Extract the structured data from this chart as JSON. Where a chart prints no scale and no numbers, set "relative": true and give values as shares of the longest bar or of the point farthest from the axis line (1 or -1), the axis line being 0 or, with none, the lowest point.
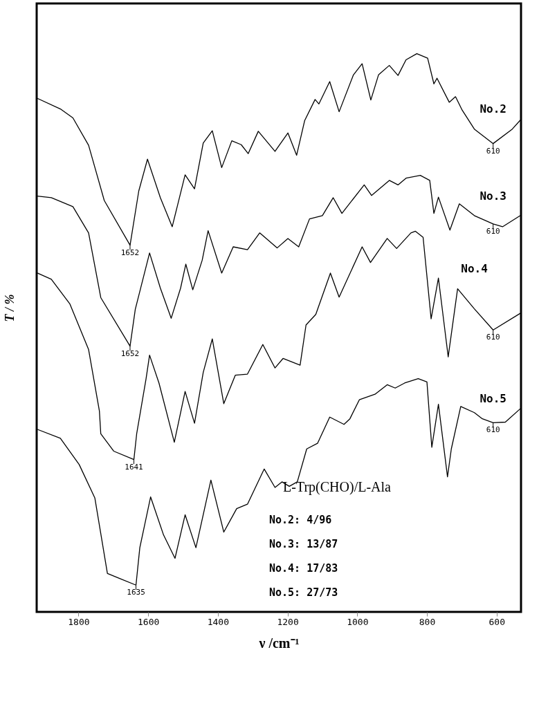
{
  "chart_data": {
    "type": "line",
    "relative": true,
    "xlabel": "ν /cm⁻¹",
    "ylabel": "T / %",
    "xlim": [
      1920,
      530
    ],
    "xticks": [
      1800,
      1600,
      1400,
      1200,
      1000,
      800,
      600
    ],
    "tick_labels": "x",
    "grid": false,
    "marker": "none",
    "line_style": "solid",
    "series": [
      {
        "name": "No.2",
        "color": "#000000",
        "x": [
          1918,
          1852,
          1816,
          1771,
          1726,
          1652,
          1627,
          1602,
          1565,
          1531,
          1494,
          1467,
          1442,
          1416,
          1389,
          1360,
          1333,
          1313,
          1284,
          1236,
          1199,
          1174,
          1151,
          1121,
          1110,
          1079,
          1052,
          1011,
          986,
          961,
          939,
          908,
          883,
          860,
          829,
          798,
          780,
          771,
          736,
          718,
          699,
          664,
          610,
          555,
          532
        ],
        "values": [
          0.92,
          0.901,
          0.885,
          0.836,
          0.737,
          0.657,
          0.754,
          0.811,
          0.742,
          0.69,
          0.783,
          0.758,
          0.84,
          0.862,
          0.796,
          0.844,
          0.837,
          0.821,
          0.861,
          0.825,
          0.858,
          0.818,
          0.88,
          0.918,
          0.91,
          0.95,
          0.896,
          0.962,
          0.982,
          0.917,
          0.962,
          0.979,
          0.961,
          0.989,
          1.0,
          0.992,
          0.946,
          0.956,
          0.913,
          0.923,
          0.899,
          0.865,
          0.839,
          0.865,
          0.881
        ]
      },
      {
        "name": "No.3",
        "color": "#000000",
        "x": [
          1918,
          1878,
          1816,
          1771,
          1736,
          1652,
          1637,
          1596,
          1565,
          1534,
          1507,
          1492,
          1472,
          1445,
          1428,
          1389,
          1356,
          1315,
          1280,
          1230,
          1199,
          1168,
          1137,
          1100,
          1069,
          1044,
          980,
          959,
          908,
          883,
          860,
          819,
          792,
          780,
          767,
          734,
          707,
          664,
          610,
          583,
          532
        ],
        "values": [
          0.745,
          0.742,
          0.726,
          0.679,
          0.563,
          0.476,
          0.542,
          0.643,
          0.58,
          0.526,
          0.58,
          0.623,
          0.577,
          0.63,
          0.683,
          0.607,
          0.654,
          0.649,
          0.679,
          0.652,
          0.669,
          0.654,
          0.704,
          0.71,
          0.742,
          0.714,
          0.765,
          0.746,
          0.773,
          0.765,
          0.777,
          0.782,
          0.773,
          0.714,
          0.743,
          0.684,
          0.731,
          0.71,
          0.695,
          0.69,
          0.71
        ]
      },
      {
        "name": "No.4",
        "color": "#000000",
        "x": [
          1918,
          1878,
          1825,
          1771,
          1740,
          1736,
          1699,
          1641,
          1633,
          1606,
          1596,
          1569,
          1525,
          1494,
          1467,
          1442,
          1416,
          1383,
          1350,
          1315,
          1271,
          1236,
          1213,
          1164,
          1147,
          1119,
          1077,
          1052,
          986,
          962,
          914,
          887,
          846,
          833,
          811,
          788,
          767,
          739,
          712,
          664,
          610,
          532
        ],
        "values": [
          0.607,
          0.596,
          0.552,
          0.47,
          0.36,
          0.319,
          0.288,
          0.273,
          0.319,
          0.418,
          0.46,
          0.41,
          0.304,
          0.395,
          0.338,
          0.429,
          0.489,
          0.373,
          0.424,
          0.426,
          0.479,
          0.437,
          0.454,
          0.442,
          0.514,
          0.533,
          0.607,
          0.564,
          0.654,
          0.626,
          0.669,
          0.651,
          0.679,
          0.682,
          0.671,
          0.525,
          0.598,
          0.457,
          0.579,
          0.543,
          0.505,
          0.535
        ]
      },
      {
        "name": "No.5",
        "color": "#000000",
        "x": [
          1918,
          1852,
          1798,
          1753,
          1717,
          1682,
          1635,
          1624,
          1593,
          1556,
          1523,
          1494,
          1463,
          1420,
          1383,
          1346,
          1315,
          1267,
          1236,
          1216,
          1195,
          1172,
          1145,
          1114,
          1079,
          1038,
          1021,
          994,
          949,
          914,
          891,
          864,
          825,
          800,
          786,
          767,
          741,
          730,
          703,
          664,
          641,
          610,
          575,
          532
        ],
        "values": [
          0.327,
          0.311,
          0.264,
          0.204,
          0.069,
          0.06,
          0.048,
          0.115,
          0.206,
          0.138,
          0.096,
          0.174,
          0.115,
          0.236,
          0.143,
          0.185,
          0.193,
          0.256,
          0.223,
          0.233,
          0.225,
          0.233,
          0.292,
          0.302,
          0.349,
          0.336,
          0.346,
          0.38,
          0.39,
          0.407,
          0.401,
          0.41,
          0.418,
          0.412,
          0.295,
          0.372,
          0.242,
          0.292,
          0.368,
          0.357,
          0.346,
          0.339,
          0.34,
          0.364
        ]
      }
    ],
    "annotations": [
      {
        "text": "1652",
        "x": 1652,
        "y": 0.657
      },
      {
        "text": "610",
        "x": 610,
        "y": 0.839
      },
      {
        "text": "1652",
        "x": 1652,
        "y": 0.476
      },
      {
        "text": "610",
        "x": 610,
        "y": 0.695
      },
      {
        "text": "1641",
        "x": 1641,
        "y": 0.273
      },
      {
        "text": "610",
        "x": 610,
        "y": 0.505
      },
      {
        "text": "1635",
        "x": 1635,
        "y": 0.048
      },
      {
        "text": "610",
        "x": 610,
        "y": 0.339
      },
      "L-Trp(CHO)/L-Ala",
      "No.2:  4/96",
      "No.3: 13/87",
      "No.4: 17/83",
      "No.5: 27/73"
    ]
  }
}
